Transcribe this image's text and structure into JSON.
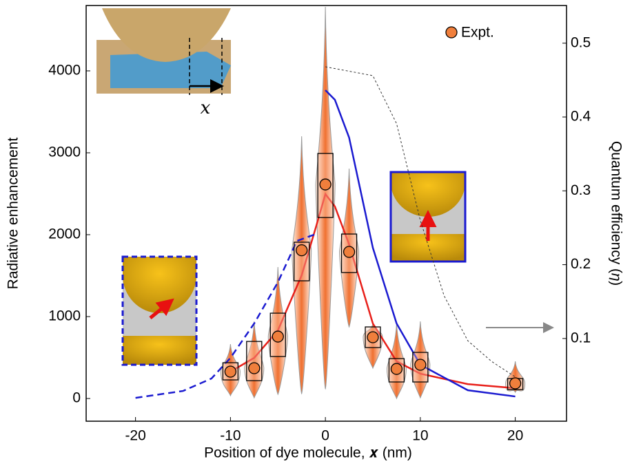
{
  "chart_data": {
    "type": "violin",
    "xlabel": "Position of dye molecule, 𝒙 (nm)",
    "ylabel": "Radiative enhancement",
    "y2label": "Quantum efficiency (𝜂)",
    "inset_label": "𝑥",
    "xlim": [
      -25.2,
      25.4
    ],
    "xticks": [
      -20,
      -10,
      0,
      10,
      20
    ],
    "ylim": [
      -277,
      4798
    ],
    "yticks": [
      0,
      1000,
      2000,
      3000,
      4000
    ],
    "y2lim": [
      -0.012,
      0.551
    ],
    "y2ticks": [
      0.1,
      0.2,
      0.3,
      0.4,
      0.5
    ],
    "legend": "upper right",
    "series": [
      {
        "name": "Expt.",
        "color": "#f07f3c",
        "x": [
          -10,
          -7.5,
          -5,
          -2.5,
          0,
          2.5,
          5,
          7.5,
          10,
          20
        ],
        "values": [
          328,
          370,
          756,
          1810,
          2613,
          1790,
          748,
          361,
          412,
          185
        ],
        "q1": [
          227,
          218,
          513,
          1437,
          2210,
          1538,
          622,
          202,
          202,
          109
        ],
        "q3": [
          437,
          697,
          1042,
          1908,
          2992,
          2008,
          874,
          487,
          563,
          244
        ],
        "min": [
          34,
          8,
          50,
          59,
          118,
          874,
          370,
          0,
          8,
          76
        ],
        "max": [
          664,
          941,
          1605,
          3202,
          4782,
          2807,
          916,
          916,
          941,
          454
        ]
      }
    ],
    "lines": [
      {
        "color": "#e8201a",
        "style": "solid",
        "axis": "y",
        "x": [
          -10,
          -7.5,
          -5,
          -2.5,
          -1,
          0,
          1,
          2.5,
          5,
          7.5,
          10,
          15,
          20
        ],
        "values": [
          328,
          496,
          832,
          1504,
          2092,
          2496,
          2345,
          1882,
          916,
          454,
          303,
          176,
          126
        ]
      },
      {
        "color": "#1a1ad0",
        "style": "solid",
        "axis": "y",
        "x": [
          0,
          1,
          2.5,
          5,
          7.5,
          10,
          15,
          20
        ],
        "values": [
          3765,
          3647,
          3185,
          1840,
          916,
          412,
          101,
          25
        ]
      },
      {
        "color": "#1a1ad0",
        "style": "dashed",
        "axis": "y",
        "x": [
          -20,
          -15,
          -12,
          -10,
          -7.5,
          -5,
          -3,
          -1
        ],
        "values": [
          8,
          92,
          244,
          496,
          916,
          1420,
          1924,
          2008
        ]
      },
      {
        "color": "#333333",
        "style": "dotted",
        "axis": "y2",
        "x": [
          0,
          5,
          7.5,
          10,
          12.5,
          15,
          17.5,
          20
        ],
        "values": [
          0.468,
          0.456,
          0.391,
          0.26,
          0.158,
          0.097,
          0.069,
          0.048
        ]
      }
    ]
  }
}
